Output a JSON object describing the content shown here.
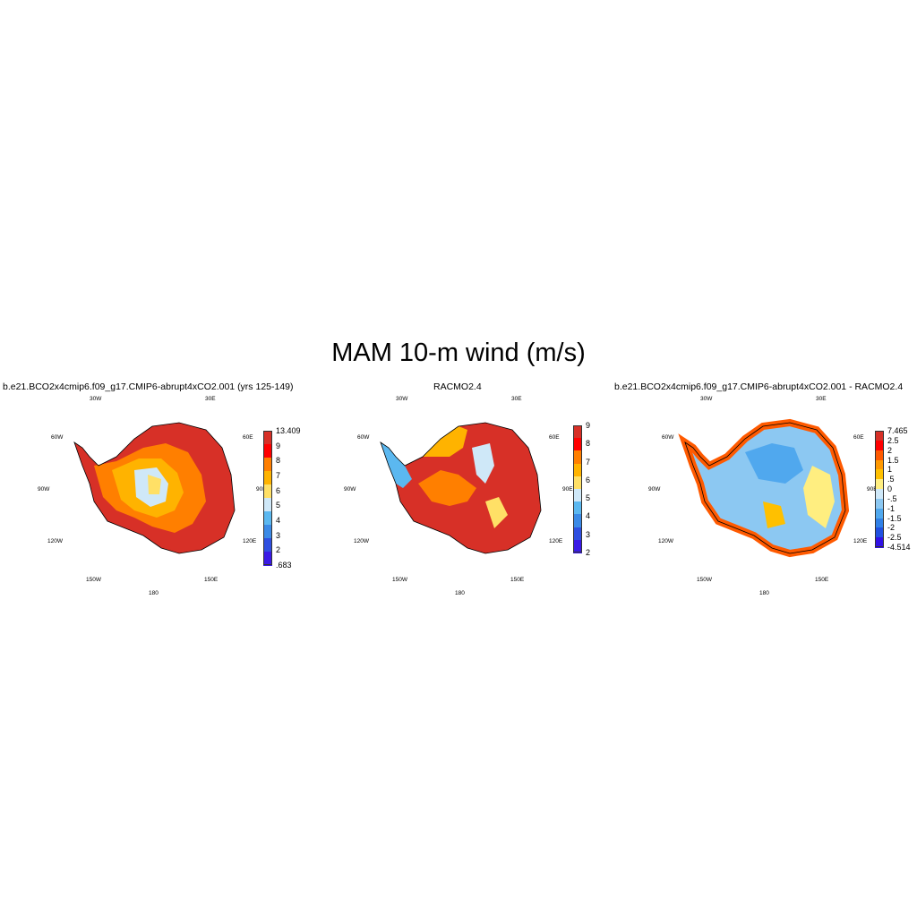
{
  "title": "MAM 10-m wind (m/s)",
  "lon_labels": [
    "30W",
    "30E",
    "60W",
    "60E",
    "90W",
    "90E",
    "120W",
    "120E",
    "150W",
    "150E",
    "180"
  ],
  "panels": [
    {
      "title": "b.e21.BCO2x4cmip6.f09_g17.CMIP6-abrupt4xCO2.001 (yrs 125-149)",
      "colorbar": {
        "labels": [
          "13.409",
          "9",
          "8",
          "7",
          "6",
          "5",
          "4",
          "3",
          "2",
          ".683"
        ],
        "colors": [
          "#d73027",
          "#ff0000",
          "#ff7f00",
          "#ffb300",
          "#ffe066",
          "#cfe8f8",
          "#5bb8f0",
          "#3b8ae6",
          "#2f4fe0",
          "#3a1ae6"
        ]
      }
    },
    {
      "title": "RACMO2.4",
      "colorbar": {
        "labels": [
          "9",
          "8",
          "7",
          "6",
          "5",
          "4",
          "3",
          "2"
        ],
        "colors": [
          "#d73027",
          "#ff0000",
          "#ff7f00",
          "#ffb300",
          "#ffe066",
          "#cfe8f8",
          "#5bb8f0",
          "#3b8ae6",
          "#2f4fe0",
          "#3a1ae6"
        ]
      }
    },
    {
      "title": "b.e21.BCO2x4cmip6.f09_g17.CMIP6-abrupt4xCO2.001 - RACMO2.4",
      "colorbar": {
        "labels": [
          "7.465",
          "2.5",
          "2",
          "1.5",
          "1",
          ".5",
          "0",
          "-.5",
          "-1",
          "-1.5",
          "-2",
          "-2.5",
          "-4.514"
        ],
        "colors": [
          "#d73027",
          "#ff0000",
          "#ff5a00",
          "#ff9900",
          "#ffc000",
          "#ffee80",
          "#cfe8f8",
          "#8cc8f2",
          "#50a8ee",
          "#3080e6",
          "#2050e0",
          "#3010e6"
        ]
      }
    }
  ]
}
